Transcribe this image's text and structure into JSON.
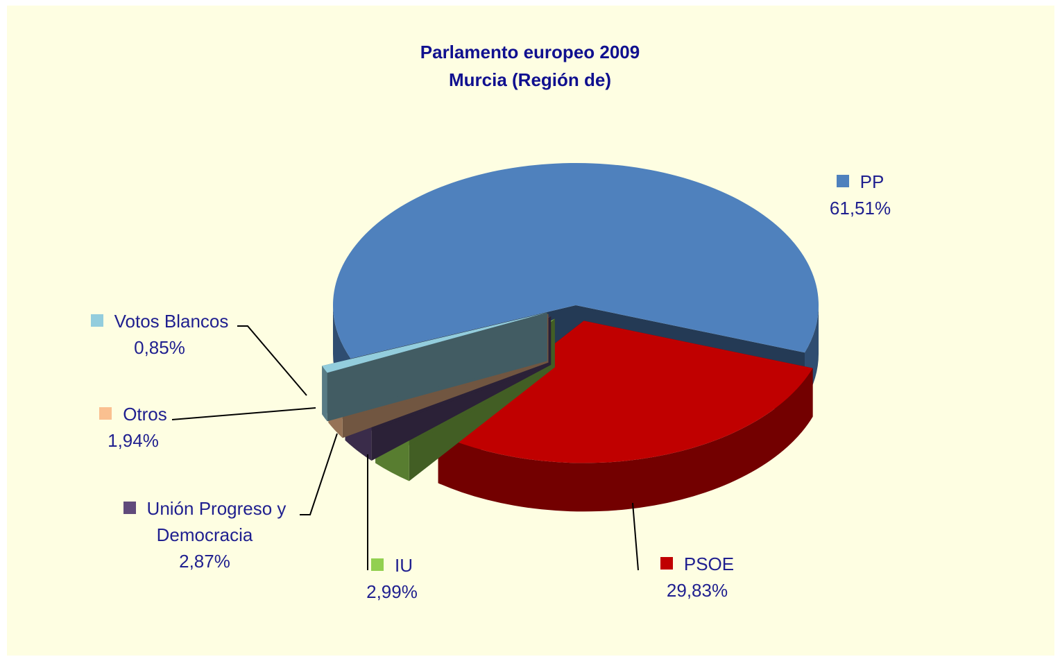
{
  "chart_data": {
    "type": "pie",
    "title": "Parlamento europeo 2009",
    "subtitle": "Murcia (Región de)",
    "categories": [
      "PP",
      "PSOE",
      "IU",
      "Unión Progreso y Democracia",
      "Otros",
      "Votos Blancos"
    ],
    "values": [
      61.51,
      29.83,
      2.99,
      2.87,
      1.94,
      0.85
    ],
    "value_labels": [
      "61,51%",
      "29,83%",
      "2,99%",
      "2,87%",
      "1,94%",
      "0,85%"
    ],
    "colors": [
      "#4f81bd",
      "#c00000",
      "#92d050",
      "#604a7b",
      "#fac090",
      "#93cddd"
    ]
  }
}
